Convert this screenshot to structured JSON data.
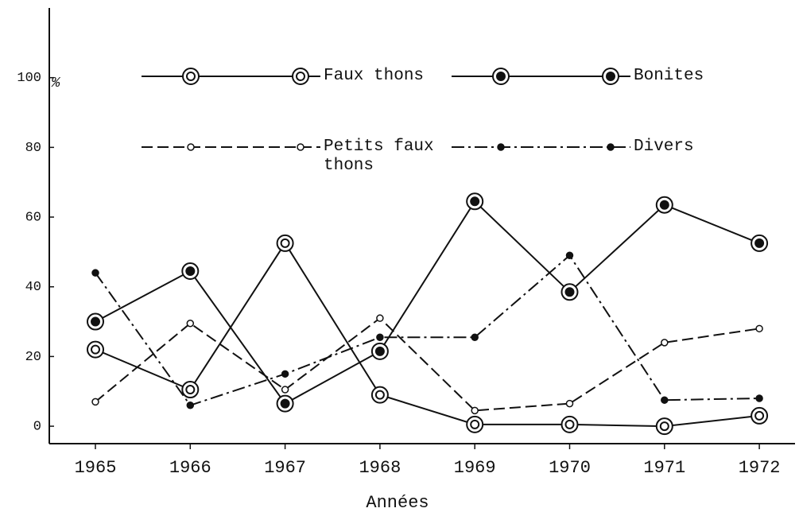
{
  "chart_data": {
    "type": "line",
    "x_label": "Années",
    "y_label": "%",
    "categories": [
      "1965",
      "1966",
      "1967",
      "1968",
      "1969",
      "1970",
      "1971",
      "1972"
    ],
    "ylim": [
      -5,
      120
    ],
    "yticks": [
      0,
      20,
      40,
      60,
      80,
      100
    ],
    "series": [
      {
        "name": "Faux thons",
        "color": "#111111",
        "dash": "solid",
        "marker": "double-open",
        "values": [
          22,
          10.5,
          52.5,
          9,
          0.5,
          0.5,
          0,
          3
        ]
      },
      {
        "name": "Bonites",
        "color": "#111111",
        "dash": "solid",
        "marker": "double-filled",
        "values": [
          30,
          44.5,
          6.5,
          21.5,
          64.5,
          38.5,
          63.5,
          52.5
        ]
      },
      {
        "name": "Petits faux thons",
        "color": "#111111",
        "dash": "dashed",
        "marker": "small-open",
        "values": [
          7,
          29.5,
          10.5,
          31,
          4.5,
          6.5,
          24,
          28
        ]
      },
      {
        "name": "Divers",
        "color": "#111111",
        "dash": "dashdot",
        "marker": "small-filled",
        "values": [
          44,
          6,
          15,
          25.5,
          25.5,
          49,
          7.5,
          8
        ]
      }
    ]
  }
}
